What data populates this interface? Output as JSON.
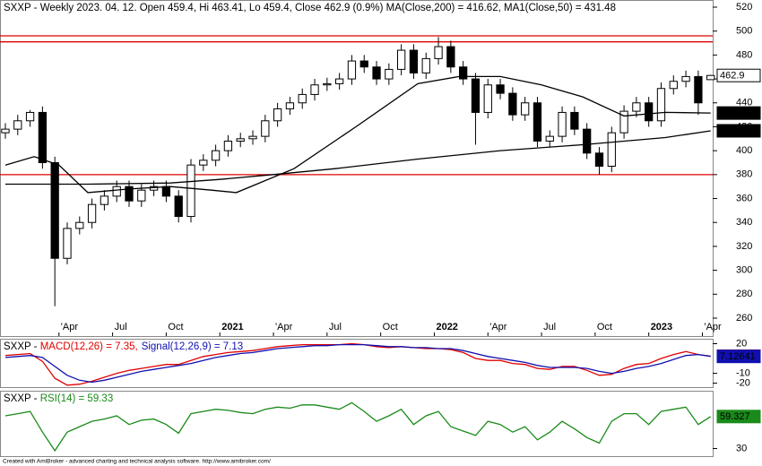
{
  "chart_data": [
    {
      "type": "candlestick",
      "title": "SXXP - Weekly 2023. 04. 12. Open 459.4, Hi 463.41, Lo 459.4, Close 462.9 (0.9%) MA(Close,200) = 416.62, MA1(Close,50) = 431.48",
      "x": [
        0,
        3,
        6,
        9,
        12,
        15,
        18,
        21,
        24,
        27,
        30,
        33,
        36,
        39,
        42,
        45,
        48,
        51,
        54,
        57,
        60,
        63,
        66,
        69,
        72,
        75,
        78,
        81,
        84,
        87,
        90,
        93,
        96,
        99,
        102,
        105,
        108,
        111,
        114,
        117,
        120,
        123,
        126,
        129,
        132,
        135,
        138,
        141,
        144,
        147,
        150,
        153,
        156,
        159,
        162,
        165,
        168,
        171
      ],
      "open": [
        415,
        418,
        425,
        432,
        390,
        310,
        335,
        340,
        355,
        362,
        370,
        358,
        367,
        370,
        362,
        345,
        388,
        392,
        400,
        408,
        410,
        412,
        425,
        435,
        440,
        447,
        455,
        456,
        460,
        475,
        470,
        460,
        468,
        484,
        465,
        477,
        487,
        470,
        460,
        432,
        455,
        448,
        430,
        440,
        408,
        412,
        432,
        418,
        398,
        387,
        415,
        433,
        440,
        425,
        452,
        458,
        462,
        459.4
      ],
      "high": [
        423,
        430,
        434,
        437,
        395,
        340,
        345,
        360,
        367,
        375,
        375,
        372,
        375,
        375,
        367,
        393,
        397,
        405,
        413,
        415,
        417,
        430,
        440,
        445,
        452,
        460,
        461,
        465,
        480,
        480,
        475,
        473,
        489,
        489,
        482,
        495,
        492,
        475,
        465,
        460,
        460,
        453,
        445,
        445,
        417,
        437,
        437,
        423,
        403,
        420,
        438,
        445,
        445,
        457,
        463,
        467,
        467,
        463.41
      ],
      "low": [
        410,
        413,
        420,
        385,
        270,
        305,
        330,
        335,
        350,
        357,
        353,
        353,
        362,
        357,
        340,
        340,
        383,
        387,
        395,
        403,
        405,
        407,
        420,
        430,
        435,
        442,
        450,
        451,
        455,
        465,
        455,
        455,
        463,
        460,
        460,
        472,
        465,
        455,
        405,
        427,
        443,
        425,
        425,
        403,
        403,
        407,
        413,
        393,
        380,
        382,
        410,
        428,
        420,
        420,
        447,
        453,
        430,
        459.4
      ],
      "close": [
        418,
        425,
        432,
        390,
        310,
        335,
        340,
        355,
        362,
        370,
        358,
        367,
        370,
        362,
        345,
        388,
        392,
        400,
        408,
        410,
        412,
        425,
        435,
        440,
        447,
        455,
        456,
        460,
        475,
        470,
        460,
        468,
        484,
        465,
        477,
        487,
        470,
        460,
        432,
        455,
        448,
        430,
        440,
        408,
        412,
        432,
        418,
        398,
        387,
        415,
        433,
        440,
        425,
        452,
        458,
        462,
        440,
        462.9
      ],
      "close_label": "462.9",
      "up_color": "#ffffff",
      "down_color": "#000000",
      "xlim": [
        -1.3,
        171.5
      ],
      "xticks": [
        {
          "value": 13,
          "label": "'Apr"
        },
        {
          "value": 26,
          "label": "Jul"
        },
        {
          "value": 39,
          "label": "Oct"
        },
        {
          "value": 52,
          "label": "2021"
        },
        {
          "value": 65,
          "label": "'Apr"
        },
        {
          "value": 78,
          "label": "Jul"
        },
        {
          "value": 91,
          "label": "Oct"
        },
        {
          "value": 104,
          "label": "2022"
        },
        {
          "value": 117,
          "label": "'Apr"
        },
        {
          "value": 130,
          "label": "Jul"
        },
        {
          "value": 143,
          "label": "Oct"
        },
        {
          "value": 156,
          "label": "2023"
        },
        {
          "value": 169,
          "label": "'Apr"
        }
      ],
      "ylim": [
        245,
        526
      ],
      "yticks": [
        260,
        280,
        300,
        320,
        340,
        360,
        380,
        400,
        420,
        440,
        460,
        480,
        500,
        520
      ],
      "hlines": {
        "values": [
          496,
          491,
          380
        ],
        "color": "#e00000"
      },
      "lines": [
        {
          "color": "#000000",
          "x": [
            0,
            20,
            40,
            52,
            65,
            80,
            100,
            120,
            140,
            160,
            171
          ],
          "values": [
            372,
            372,
            373,
            376,
            380,
            385,
            393,
            400,
            405,
            411,
            416.621
          ],
          "last_label": "416.621"
        },
        {
          "color": "#000000",
          "x": [
            0,
            7,
            13,
            20,
            30,
            40,
            50,
            56,
            70,
            85,
            100,
            110,
            120,
            130,
            140,
            150,
            160,
            171
          ],
          "values": [
            388,
            395,
            388,
            365,
            368,
            370,
            367,
            365,
            385,
            420,
            456,
            462,
            462,
            455,
            445,
            429,
            432,
            431.483
          ],
          "last_label": "431.483"
        }
      ]
    },
    {
      "type": "line",
      "title": "SXXP - ",
      "x": [
        0,
        3,
        6,
        9,
        12,
        15,
        18,
        21,
        24,
        27,
        30,
        33,
        36,
        39,
        42,
        45,
        48,
        51,
        54,
        57,
        60,
        63,
        66,
        69,
        72,
        75,
        78,
        81,
        84,
        87,
        90,
        93,
        96,
        99,
        102,
        105,
        108,
        111,
        114,
        117,
        120,
        123,
        126,
        129,
        132,
        135,
        138,
        141,
        144,
        147,
        150,
        153,
        156,
        159,
        162,
        165,
        168,
        171
      ],
      "xlim": [
        -1.3,
        171.5
      ],
      "ylim": [
        -24,
        25
      ],
      "yticks": [
        20,
        -10,
        -20
      ],
      "series": [
        {
          "name": "MACD(12,26) = 7.35,",
          "color": "#e00000",
          "values": [
            8,
            9,
            10,
            2,
            -15,
            -22,
            -21,
            -18,
            -14,
            -10,
            -7,
            -5,
            -3,
            -1,
            -1,
            3,
            7,
            9,
            11,
            12,
            13,
            15,
            17,
            18,
            19,
            19,
            19,
            19,
            20,
            19,
            17,
            16,
            17,
            16,
            15,
            15,
            14,
            11,
            5,
            3,
            3,
            0,
            -1,
            -5,
            -6,
            -3,
            -3,
            -7,
            -12,
            -11,
            -5,
            -1,
            0,
            5,
            9,
            12,
            9,
            7.3512
          ],
          "last_label": "7.3512"
        },
        {
          "name": "Signal(12,26,9) = 7.13",
          "color": "#1010b0",
          "values": [
            6,
            7,
            8,
            6,
            -3,
            -12,
            -17,
            -19,
            -17,
            -14,
            -11,
            -8,
            -6,
            -4,
            -2,
            0,
            3,
            6,
            8,
            10,
            11,
            13,
            15,
            16,
            17,
            18,
            18,
            19,
            19,
            19,
            18,
            17,
            17,
            16,
            16,
            15,
            15,
            13,
            10,
            7,
            5,
            3,
            1,
            -2,
            -4,
            -4,
            -4,
            -5,
            -8,
            -10,
            -8,
            -5,
            -3,
            0,
            4,
            8,
            9,
            7.12641
          ],
          "last_label": "7.12641"
        }
      ]
    },
    {
      "type": "line",
      "title": "SXXP - ",
      "x": [
        0,
        3,
        6,
        9,
        12,
        15,
        18,
        21,
        24,
        27,
        30,
        33,
        36,
        39,
        42,
        45,
        48,
        51,
        54,
        57,
        60,
        63,
        66,
        69,
        72,
        75,
        78,
        81,
        84,
        87,
        90,
        93,
        96,
        99,
        102,
        105,
        108,
        111,
        114,
        117,
        120,
        123,
        126,
        129,
        132,
        135,
        138,
        141,
        144,
        147,
        150,
        153,
        156,
        159,
        162,
        165,
        168,
        171
      ],
      "xlim": [
        -1.3,
        171.5
      ],
      "ylim": [
        23,
        83
      ],
      "yticks": [
        30
      ],
      "series": [
        {
          "name": "RSI(14) = 59.33",
          "color": "#1a8a1a",
          "values": [
            60,
            62,
            64,
            45,
            28,
            45,
            50,
            55,
            57,
            60,
            52,
            56,
            57,
            52,
            44,
            62,
            64,
            66,
            65,
            63,
            62,
            66,
            68,
            67,
            70,
            70,
            68,
            66,
            72,
            64,
            55,
            60,
            66,
            52,
            60,
            64,
            50,
            46,
            42,
            55,
            52,
            45,
            50,
            38,
            45,
            55,
            48,
            40,
            35,
            55,
            62,
            62,
            52,
            64,
            66,
            68,
            52,
            59.327
          ],
          "last_label": "59.327"
        }
      ]
    }
  ],
  "footer": "Created with AmiBroker - advanced charting and technical analysis software. http://www.amibroker.com/"
}
